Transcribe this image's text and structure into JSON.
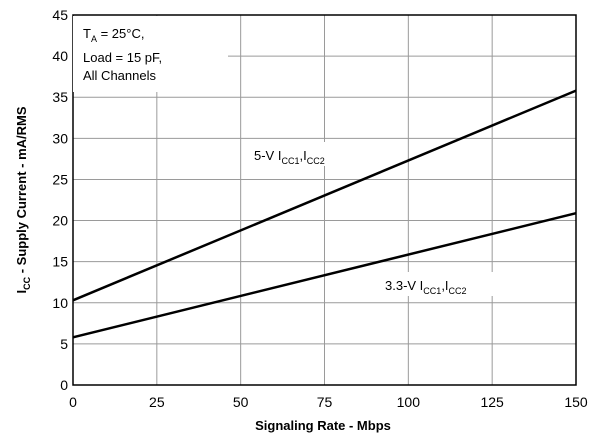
{
  "chart_data": {
    "type": "line",
    "xlabel": "Signaling Rate - Mbps",
    "ylabel": "I",
    "ylabel_sub": "CC",
    "ylabel_rest": " - Supply Current - mA/RMS",
    "xlim": [
      0,
      150
    ],
    "ylim": [
      0,
      45
    ],
    "xticks": [
      "0",
      "25",
      "50",
      "75",
      "100",
      "125",
      "150"
    ],
    "yticks": [
      "0",
      "5",
      "10",
      "15",
      "20",
      "25",
      "30",
      "35",
      "40",
      "45"
    ],
    "grid": true,
    "annotation": {
      "line1_main": "T",
      "line1_sub": "A",
      "line1_rest": " = 25°C,",
      "line2": "Load = 15 pF,",
      "line3": "All Channels"
    },
    "series": [
      {
        "name": "5-V I_CC1,I_CC2",
        "label_prefix": "5-V I",
        "label_sub1": "CC1",
        "label_mid": ",I",
        "label_sub2": "CC2",
        "x": [
          0,
          150
        ],
        "y": [
          10.3,
          35.8
        ]
      },
      {
        "name": "3.3-V I_CC1,I_CC2",
        "label_prefix": "3.3-V I",
        "label_sub1": "CC1",
        "label_mid": ",I",
        "label_sub2": "CC2",
        "x": [
          0,
          150
        ],
        "y": [
          5.8,
          20.9
        ]
      }
    ]
  }
}
